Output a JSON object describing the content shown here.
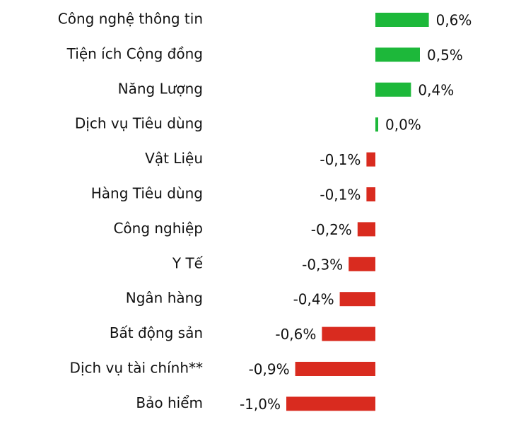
{
  "chart_data": {
    "type": "hbar",
    "categories": [
      "Công nghệ thông tin",
      "Tiện ích Cộng đồng",
      "Năng Lượng",
      "Dịch vụ Tiêu dùng",
      "Vật Liệu",
      "Hàng Tiêu dùng",
      "Công nghiệp",
      "Y Tế",
      "Ngân hàng",
      "Bất động sản",
      "Dịch vụ tài chính**",
      "Bảo hiểm"
    ],
    "values": [
      0.6,
      0.5,
      0.4,
      0.0,
      -0.1,
      -0.1,
      -0.2,
      -0.3,
      -0.4,
      -0.6,
      -0.9,
      -1.0
    ],
    "value_labels": [
      "0,6%",
      "0,5%",
      "0,4%",
      "0,0%",
      "-0,1%",
      "-0,1%",
      "-0,2%",
      "-0,3%",
      "-0,4%",
      "-0,6%",
      "-0,9%",
      "-1,0%"
    ],
    "positive_color": "#1db83a",
    "negative_color": "#d92b1f"
  }
}
